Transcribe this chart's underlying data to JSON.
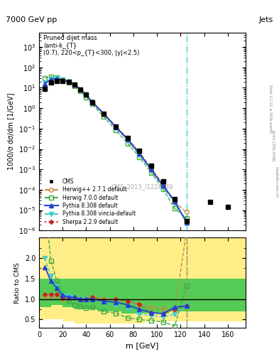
{
  "title_top": "7000 GeV pp",
  "title_right": "Jets",
  "plot_title": "Pruned dijet mass (anti-k_{T}(0.7), 220<p_{T}<300, |y|<2.5)",
  "ylabel_main": "1000/σ dσ/dm [1/GeV]",
  "ylabel_ratio": "Ratio to CMS",
  "xlabel": "m [GeV]",
  "watermark": "CMS_2013_I1224539",
  "side_text1": "Rivet 3.1.10, ≥ 400k events",
  "side_text2": "[arXiv:1306.3436]",
  "side_text3": "mcplots.cern.ch",
  "cms_x": [
    5,
    10,
    15,
    20,
    25,
    30,
    35,
    40,
    45,
    55,
    65,
    75,
    85,
    95,
    105,
    115,
    125,
    145,
    160
  ],
  "cms_y": [
    9.0,
    18.0,
    22.0,
    22.0,
    19.0,
    14.0,
    8.5,
    4.5,
    2.0,
    0.55,
    0.13,
    0.035,
    0.008,
    0.0015,
    0.00025,
    3.5e-05,
    3e-06,
    2.5e-05,
    1.5e-05
  ],
  "herwig271_x": [
    5,
    10,
    15,
    20,
    25,
    30,
    35,
    40,
    45,
    55,
    65,
    75,
    85,
    95,
    105,
    115,
    125,
    145
  ],
  "herwig271_y": [
    9.5,
    19.0,
    24.0,
    22.0,
    19.5,
    14.5,
    8.5,
    4.5,
    2.1,
    0.55,
    0.13,
    0.033,
    0.007,
    0.0012,
    0.00019,
    2.5e-05,
    8e-06,
    null
  ],
  "herwig700_x": [
    5,
    10,
    15,
    20,
    25,
    30,
    35,
    40,
    45,
    55,
    65,
    75,
    85,
    95,
    105,
    115,
    125
  ],
  "herwig700_y": [
    30.0,
    35.0,
    32.0,
    25.0,
    18.0,
    12.0,
    7.0,
    3.5,
    1.6,
    0.38,
    0.085,
    0.019,
    0.004,
    0.0007,
    0.00011,
    1.2e-05,
    4e-06
  ],
  "pythia8_x": [
    5,
    10,
    15,
    20,
    25,
    30,
    35,
    40,
    45,
    55,
    65,
    75,
    85,
    95,
    105,
    115,
    125
  ],
  "pythia8_y": [
    16.0,
    26.0,
    28.0,
    24.0,
    20.0,
    14.5,
    8.5,
    4.5,
    2.0,
    0.52,
    0.12,
    0.03,
    0.006,
    0.001,
    0.00016,
    2.8e-05,
    2.5e-06
  ],
  "vinciap8_x": [
    5,
    10,
    15,
    20,
    25,
    30,
    35,
    40,
    45,
    55,
    65,
    75,
    85,
    95,
    105,
    115,
    125
  ],
  "vinciap8_y": [
    18.0,
    28.0,
    28.5,
    24.5,
    20.5,
    14.5,
    8.5,
    4.5,
    2.0,
    0.5,
    0.11,
    0.027,
    0.005,
    0.0009,
    0.00014,
    2.2e-05,
    2.5e-06
  ],
  "sherpa_x": [
    5,
    10,
    15,
    20,
    25,
    30,
    35,
    40,
    45,
    55,
    65,
    75,
    85,
    95,
    105,
    115,
    125
  ],
  "sherpa_y": [
    10.0,
    20.0,
    24.5,
    22.5,
    19.5,
    14.5,
    8.5,
    4.5,
    2.1,
    0.54,
    0.13,
    0.033,
    0.007,
    0.001,
    0.00016,
    2.6e-05,
    2.5e-06
  ],
  "ratio_herwig271_x": [
    5,
    10,
    15,
    20,
    25,
    30,
    35,
    40,
    45,
    55,
    65,
    75,
    85,
    95,
    105,
    115,
    125
  ],
  "ratio_herwig271_y": [
    1.06,
    1.06,
    1.09,
    1.0,
    1.03,
    1.04,
    1.0,
    1.0,
    1.05,
    1.0,
    1.0,
    0.94,
    0.875,
    0.8,
    0.76,
    0.71,
    2.67
  ],
  "ratio_herwig700_x": [
    5,
    10,
    15,
    20,
    25,
    30,
    35,
    40,
    45,
    55,
    65,
    75,
    85,
    95,
    105,
    115,
    125
  ],
  "ratio_herwig700_y": [
    3.33,
    1.94,
    1.45,
    1.14,
    0.95,
    0.86,
    0.82,
    0.78,
    0.8,
    0.69,
    0.65,
    0.54,
    0.5,
    0.47,
    0.44,
    0.34,
    1.33
  ],
  "ratio_pythia8_x": [
    5,
    10,
    15,
    20,
    25,
    30,
    35,
    40,
    45,
    55,
    65,
    75,
    85,
    95,
    105,
    115,
    125
  ],
  "ratio_pythia8_y": [
    1.78,
    1.44,
    1.27,
    1.09,
    1.05,
    1.04,
    1.0,
    1.0,
    1.0,
    0.945,
    0.923,
    0.857,
    0.75,
    0.667,
    0.64,
    0.8,
    0.833
  ],
  "ratio_vinciap8_x": [
    5,
    10,
    15,
    20,
    25,
    30,
    35,
    40,
    45,
    55,
    65,
    75,
    85,
    95,
    105,
    115,
    125
  ],
  "ratio_vinciap8_y": [
    2.0,
    1.56,
    1.3,
    1.11,
    1.08,
    1.04,
    1.0,
    1.0,
    1.0,
    0.91,
    0.846,
    0.771,
    0.625,
    0.6,
    0.56,
    0.629,
    0.833
  ],
  "ratio_sherpa_x": [
    5,
    10,
    15,
    20,
    25,
    30,
    35,
    40,
    45,
    55,
    65,
    75,
    85,
    95,
    105,
    115,
    125
  ],
  "ratio_sherpa_y": [
    1.11,
    1.11,
    1.11,
    1.02,
    1.03,
    1.04,
    1.0,
    1.0,
    1.05,
    0.982,
    1.0,
    0.943,
    0.875,
    0.667,
    0.64,
    0.743,
    0.833
  ],
  "bg_yellow_x": [
    0,
    10,
    20,
    30,
    50,
    70,
    90,
    110,
    120,
    170
  ],
  "bg_yellow_y1": [
    2.5,
    2.5,
    2.5,
    2.5,
    2.5,
    2.5,
    2.5,
    2.5,
    2.5,
    2.5
  ],
  "bg_yellow_y2": [
    0.4,
    0.4,
    0.4,
    0.4,
    0.4,
    0.4,
    0.4,
    0.4,
    0.4,
    0.4
  ],
  "bg_green_x": [
    0,
    10,
    20,
    30,
    50,
    70,
    90,
    110,
    120,
    170
  ],
  "bg_green_y1": [
    2.5,
    2.5,
    2.5,
    2.5,
    2.5,
    2.5,
    2.5,
    2.5,
    2.5,
    2.5
  ],
  "bg_green_y2": [
    0.4,
    0.4,
    0.4,
    0.4,
    0.4,
    0.4,
    0.4,
    0.4,
    0.4,
    0.4
  ],
  "xlim": [
    0,
    175
  ],
  "ylim_main": [
    1e-06,
    5000.0
  ],
  "ylim_ratio": [
    0.3,
    2.5
  ],
  "vline_x": 125,
  "color_cms": "#000000",
  "color_herwig271": "#cc8844",
  "color_herwig700": "#44aa44",
  "color_pythia8": "#2244cc",
  "color_vinciap8": "#44cccc",
  "color_sherpa": "#cc2222"
}
